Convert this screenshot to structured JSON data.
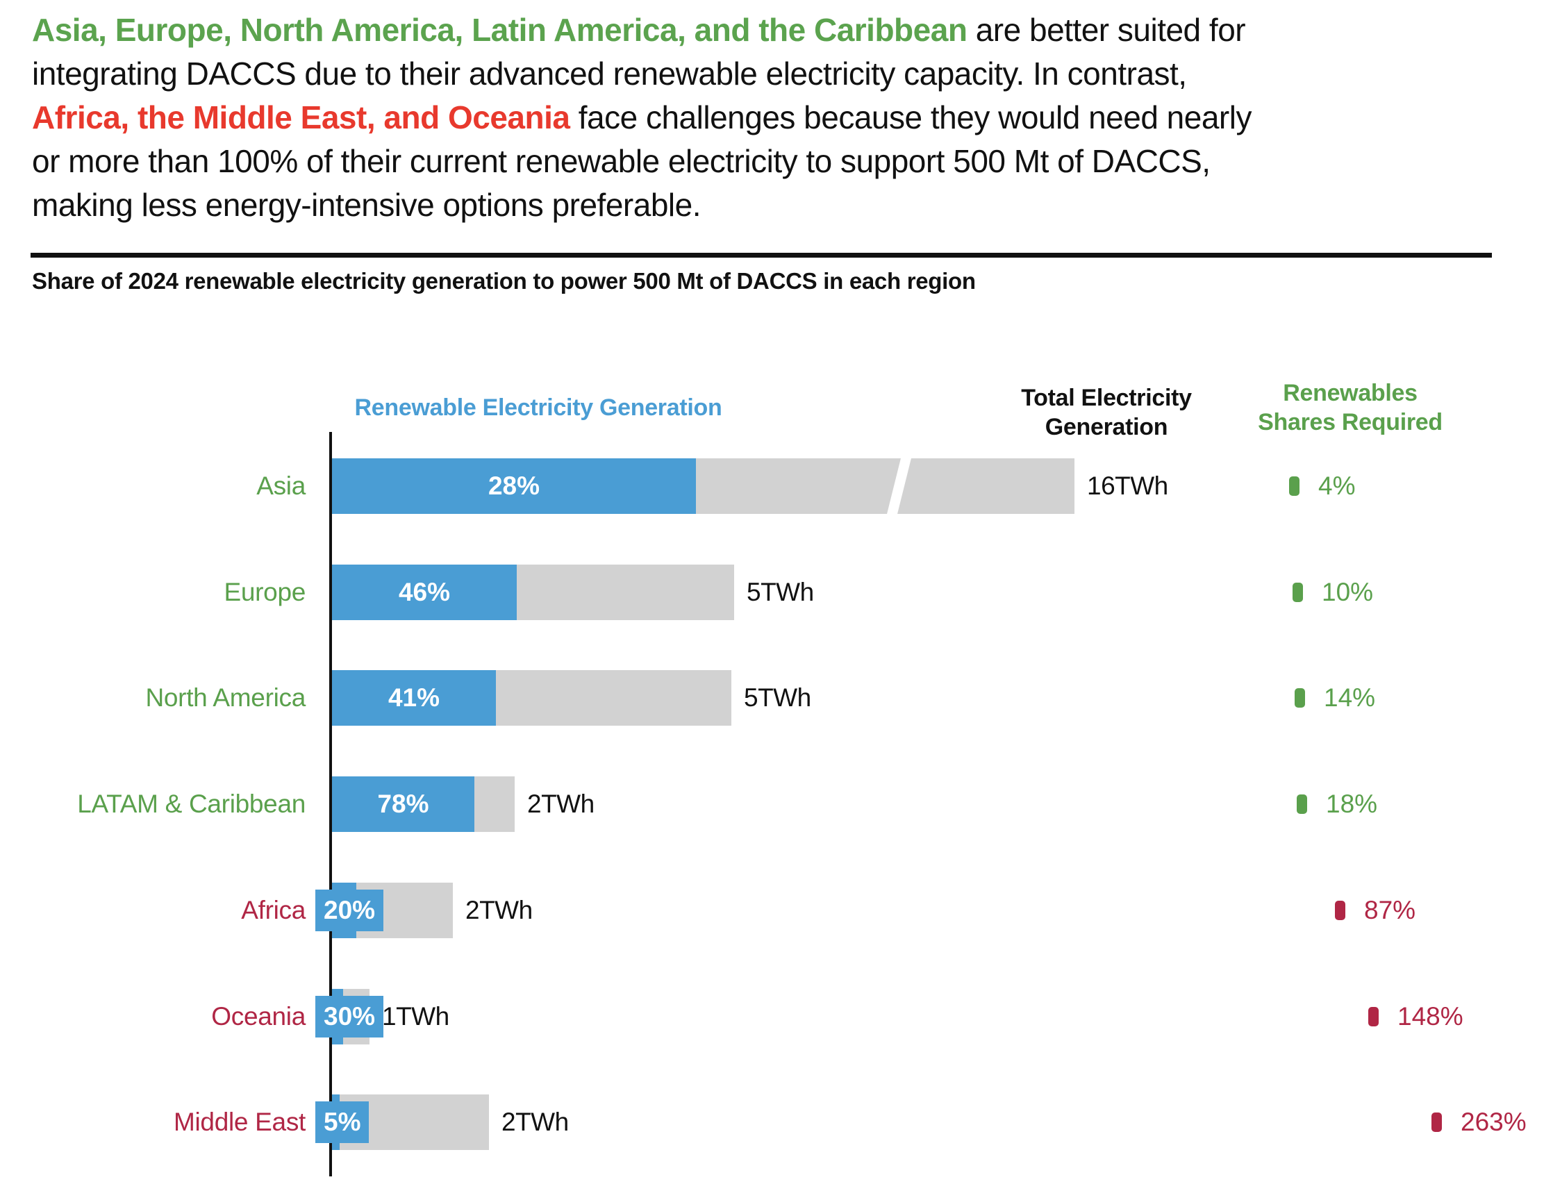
{
  "headline": {
    "segments": [
      {
        "text": "Asia, Europe, North America, Latin America, and the Caribbean",
        "style": "green",
        "br_after": false
      },
      {
        "text": " are better suited for",
        "style": "black",
        "br_after": true
      },
      {
        "text": "integrating DACCS due to their advanced renewable electricity capacity. In contrast,",
        "style": "black",
        "br_after": true
      },
      {
        "text": "Africa, the Middle East, and Oceania",
        "style": "red",
        "br_after": false
      },
      {
        "text": " face challenges because they would need nearly",
        "style": "black",
        "br_after": true
      },
      {
        "text": "or more than 100% of their current renewable electricity to support 500 Mt of DACCS,",
        "style": "black",
        "br_after": true
      },
      {
        "text": "making less energy-intensive options preferable.",
        "style": "black",
        "br_after": false
      }
    ]
  },
  "subtitle": "Share of 2024 renewable electricity generation to power 500 Mt of DACCS in each region",
  "columns": {
    "renewable": "Renewable Electricity Generation",
    "total_line1": "Total Electricity",
    "total_line2": "Generation",
    "required_line1": "Renewables",
    "required_line2": "Shares Required"
  },
  "colors": {
    "blue": "#4A9DD4",
    "gray": "#D2D2D2",
    "green": "#5AA04C",
    "crimson": "#B02645",
    "headline_green": "#5BA34E",
    "headline_red": "#E8392D",
    "text_black": "#111111"
  },
  "chart_data": {
    "type": "bar",
    "title": "Share of 2024 renewable electricity generation to power 500 Mt of DACCS in each region",
    "column_headers": [
      "Renewable Electricity Generation",
      "Total Electricity Generation",
      "Renewables Shares Required"
    ],
    "grid": false,
    "legend_position": "none",
    "required_marker_value_range": [
      4,
      263
    ],
    "rows": [
      {
        "region": "Asia",
        "renewable_share_pct": 28,
        "total_generation": "16TWh",
        "renewables_share_required_pct": 4,
        "group": "green",
        "bar_total_w": 1069,
        "bar_blue_w": 524,
        "broken_bar": true,
        "share_label_style": "inside"
      },
      {
        "region": "Europe",
        "renewable_share_pct": 46,
        "total_generation": "5TWh",
        "renewables_share_required_pct": 10,
        "group": "green",
        "bar_total_w": 579,
        "broken_bar": false,
        "share_label_style": "inside"
      },
      {
        "region": "North America",
        "renewable_share_pct": 41,
        "total_generation": "5TWh",
        "renewables_share_required_pct": 14,
        "group": "green",
        "bar_total_w": 575,
        "broken_bar": false,
        "share_label_style": "inside"
      },
      {
        "region": "LATAM & Caribbean",
        "renewable_share_pct": 78,
        "total_generation": "2TWh",
        "renewables_share_required_pct": 18,
        "group": "green",
        "bar_total_w": 263,
        "broken_bar": false,
        "share_label_style": "inside"
      },
      {
        "region": "Africa",
        "renewable_share_pct": 20,
        "total_generation": "2TWh",
        "renewables_share_required_pct": 87,
        "group": "red",
        "bar_total_w": 174,
        "broken_bar": false,
        "share_label_style": "chip"
      },
      {
        "region": "Oceania",
        "renewable_share_pct": 30,
        "total_generation": "1TWh",
        "renewables_share_required_pct": 148,
        "group": "red",
        "bar_total_w": 54,
        "broken_bar": false,
        "share_label_style": "chip"
      },
      {
        "region": "Middle East",
        "renewable_share_pct": 5,
        "total_generation": "2TWh",
        "renewables_share_required_pct": 263,
        "group": "red",
        "bar_total_w": 226,
        "broken_bar": false,
        "share_label_style": "chip"
      }
    ]
  }
}
